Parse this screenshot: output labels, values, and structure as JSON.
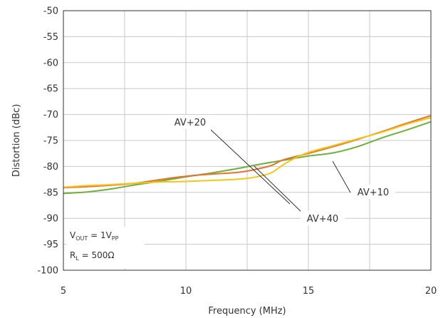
{
  "chart_data": {
    "type": "line",
    "xlabel": "Frequency (MHz)",
    "ylabel": "Distortion (dBc)",
    "xlim": [
      5,
      20
    ],
    "ylim": [
      -100,
      -50
    ],
    "xticks": [
      "5",
      "10",
      "15",
      "20"
    ],
    "yticks": [
      "-50",
      "-55",
      "-60",
      "-65",
      "-70",
      "-75",
      "-80",
      "-85",
      "-90",
      "-95",
      "-100"
    ],
    "grid": true,
    "series": [
      {
        "name": "AV+10",
        "color": "#6bb23a",
        "points": [
          [
            5,
            -85.2
          ],
          [
            6,
            -84.9
          ],
          [
            7,
            -84.3
          ],
          [
            8,
            -83.5
          ],
          [
            9,
            -82.8
          ],
          [
            10,
            -82.0
          ],
          [
            11,
            -81.3
          ],
          [
            12,
            -80.5
          ],
          [
            13,
            -79.6
          ],
          [
            14,
            -78.8
          ],
          [
            15,
            -78.0
          ],
          [
            16,
            -77.4
          ],
          [
            17,
            -76.2
          ],
          [
            18,
            -74.5
          ],
          [
            19,
            -73.0
          ],
          [
            20,
            -71.4
          ]
        ]
      },
      {
        "name": "AV+20",
        "color": "#e8702a",
        "points": [
          [
            5,
            -84.1
          ],
          [
            6,
            -83.9
          ],
          [
            7,
            -83.6
          ],
          [
            8,
            -83.2
          ],
          [
            9,
            -82.5
          ],
          [
            10,
            -81.9
          ],
          [
            11,
            -81.5
          ],
          [
            12,
            -81.2
          ],
          [
            12.5,
            -80.9
          ],
          [
            13,
            -80.4
          ],
          [
            13.5,
            -79.8
          ],
          [
            14,
            -78.7
          ],
          [
            15,
            -77.5
          ],
          [
            16,
            -76.2
          ],
          [
            17,
            -74.8
          ],
          [
            18,
            -73.3
          ],
          [
            19,
            -71.7
          ],
          [
            20,
            -70.2
          ]
        ]
      },
      {
        "name": "AV+40",
        "color": "#f5c518",
        "points": [
          [
            5,
            -84.0
          ],
          [
            6,
            -83.7
          ],
          [
            7,
            -83.5
          ],
          [
            8,
            -83.2
          ],
          [
            9,
            -83.0
          ],
          [
            10,
            -82.9
          ],
          [
            11,
            -82.7
          ],
          [
            12,
            -82.5
          ],
          [
            12.5,
            -82.3
          ],
          [
            13,
            -81.9
          ],
          [
            13.5,
            -81.2
          ],
          [
            14,
            -79.6
          ],
          [
            14.5,
            -78.3
          ],
          [
            15,
            -77.3
          ],
          [
            16,
            -76.0
          ],
          [
            17,
            -74.7
          ],
          [
            18,
            -73.4
          ],
          [
            19,
            -71.9
          ],
          [
            20,
            -70.6
          ]
        ]
      }
    ],
    "annotations": [
      {
        "id": "ann-av20",
        "text": "AV+20",
        "series": "AV+20"
      },
      {
        "id": "ann-av10",
        "text": "AV+10",
        "series": "AV+10"
      },
      {
        "id": "ann-av40",
        "text": "AV+40",
        "series": "AV+40"
      }
    ],
    "conditions": {
      "vout_prefix": "V",
      "vout_sub": "OUT",
      "vout_mid": " = 1V",
      "vout_sub2": "PP",
      "rl_prefix": "R",
      "rl_sub": "L",
      "rl_rest": " = 500Ω"
    }
  }
}
